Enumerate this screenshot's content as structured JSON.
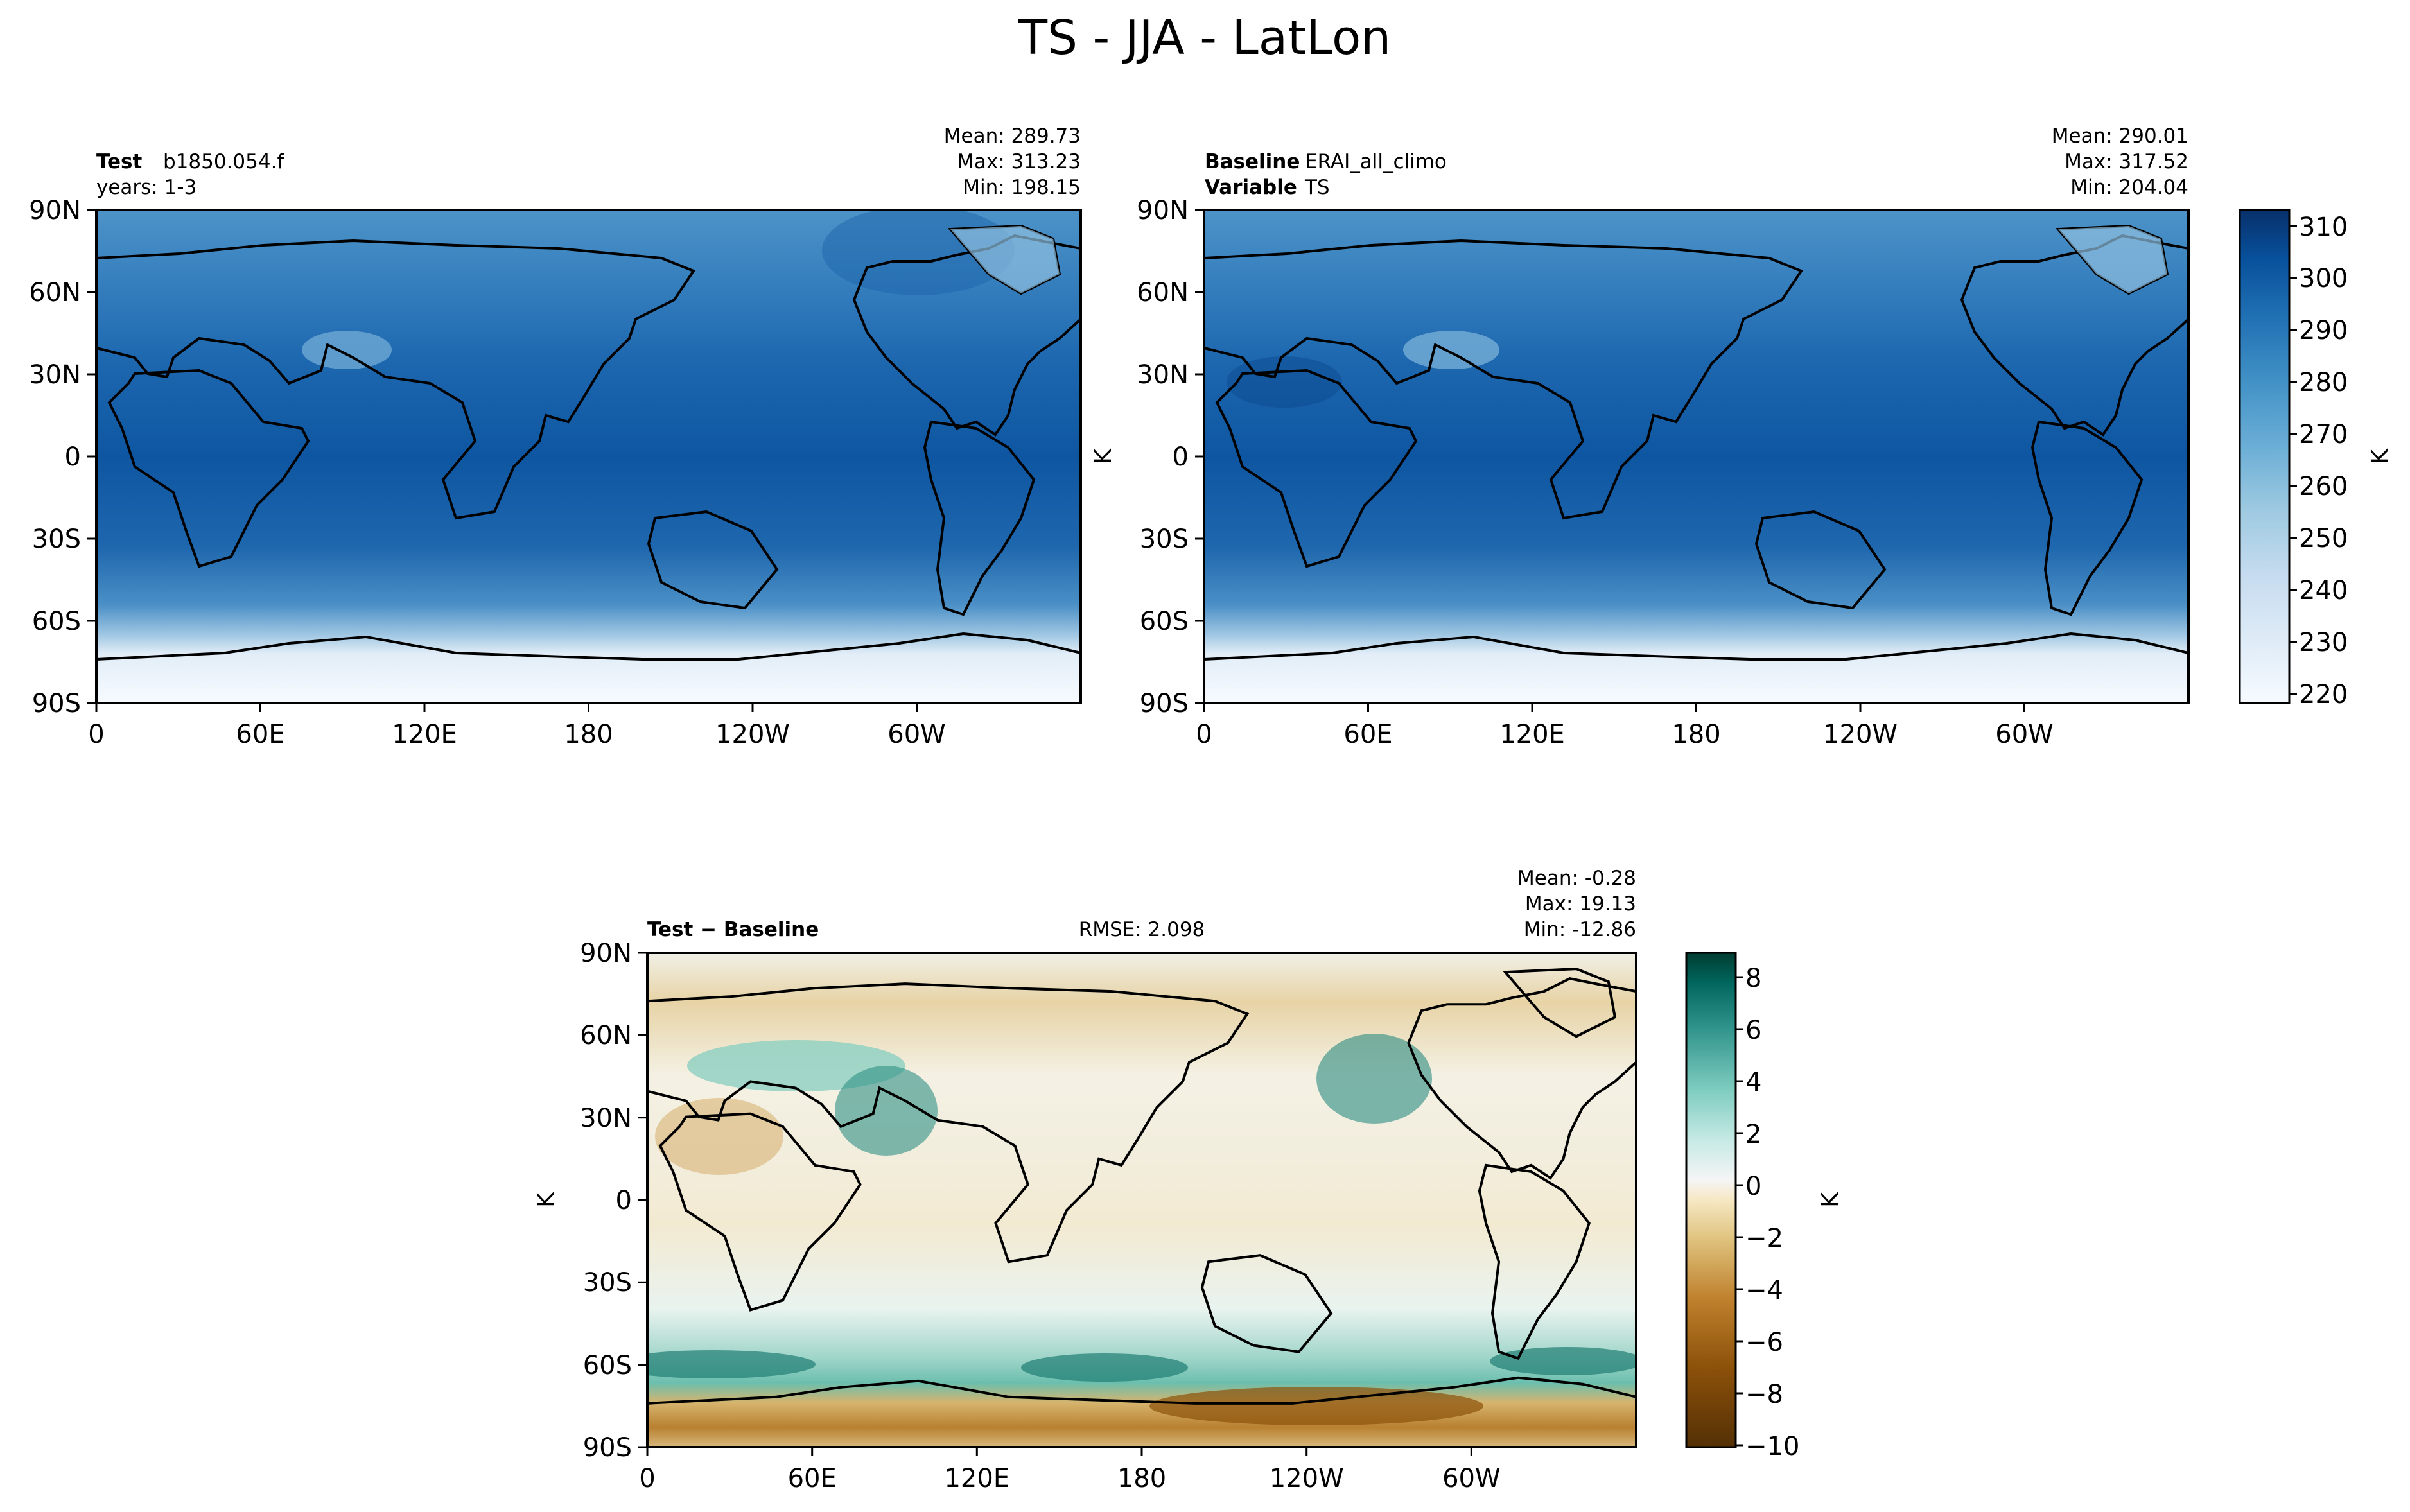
{
  "figure": {
    "title": "TS - JJA - LatLon"
  },
  "chart_data": [
    {
      "type": "heatmap",
      "name": "test",
      "header": {
        "label": "Test",
        "value": "b1850.054.f",
        "line2": "years: 1-3"
      },
      "stats": {
        "mean": "Mean: 289.73",
        "max": "Max: 313.23",
        "min": "Min: 198.15"
      },
      "x_ticks": [
        "0",
        "60E",
        "120E",
        "180",
        "120W",
        "60W"
      ],
      "y_ticks": [
        "90N",
        "60N",
        "30N",
        "0",
        "30S",
        "60S",
        "90S"
      ],
      "xlim": [
        0,
        360
      ],
      "ylim": [
        -90,
        90
      ],
      "colormap": "Blues",
      "clim": [
        220,
        315
      ]
    },
    {
      "type": "heatmap",
      "name": "baseline",
      "header": {
        "label": "Baseline",
        "value": "ERAI_all_climo",
        "label2": "Variable",
        "value2": "TS"
      },
      "stats": {
        "mean": "Mean: 290.01",
        "max": "Max: 317.52",
        "min": "Min: 204.04"
      },
      "x_ticks": [
        "0",
        "60E",
        "120E",
        "180",
        "120W",
        "60W"
      ],
      "y_ticks": [
        "90N",
        "60N",
        "30N",
        "0",
        "30S",
        "60S",
        "90S"
      ],
      "ylabel": "K",
      "xlim": [
        0,
        360
      ],
      "ylim": [
        -90,
        90
      ],
      "colormap": "Blues",
      "clim": [
        220,
        315
      ],
      "colorbar": {
        "ticks": [
          "310",
          "300",
          "290",
          "280",
          "270",
          "260",
          "250",
          "240",
          "230",
          "220"
        ],
        "label": "K"
      }
    },
    {
      "type": "heatmap",
      "name": "difference",
      "header": {
        "label": "Test − Baseline",
        "rmse": "RMSE: 2.098"
      },
      "stats": {
        "mean": "Mean: -0.28",
        "max": "Max: 19.13",
        "min": "Min: -12.86"
      },
      "x_ticks": [
        "0",
        "60E",
        "120E",
        "180",
        "120W",
        "60W"
      ],
      "y_ticks": [
        "90N",
        "60N",
        "30N",
        "0",
        "30S",
        "60S",
        "90S"
      ],
      "ylabel": "K",
      "xlim": [
        0,
        360
      ],
      "ylim": [
        -90,
        90
      ],
      "colormap": "BrBG",
      "clim": [
        -10,
        9
      ],
      "colorbar": {
        "ticks": [
          "8",
          "6",
          "4",
          "2",
          "0",
          "−2",
          "−4",
          "−6",
          "−8",
          "−10"
        ],
        "label": "K"
      }
    }
  ]
}
